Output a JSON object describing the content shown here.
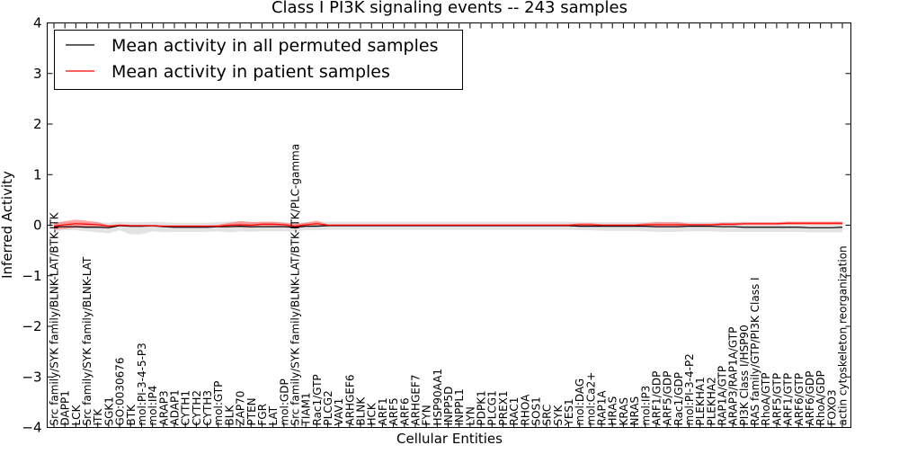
{
  "chart_data": {
    "type": "line",
    "title": "Class I PI3K signaling events -- 243 samples",
    "xlabel": "Cellular Entities",
    "ylabel": "Inferred Activity",
    "ylim": [
      -4,
      4
    ],
    "yticks": [
      4,
      3,
      2,
      1,
      0,
      -1,
      -2,
      -3,
      -4
    ],
    "ytick_labels": [
      "4",
      "3",
      "2",
      "1",
      "0",
      "−1",
      "−2",
      "−3",
      "−4"
    ],
    "legend_position": "upper-left",
    "categories": [
      "Src family/SYK family/BLNK-LAT/BTK-ITK",
      "DAPP1",
      "LCK",
      "Src family/SYK family/BLNK-LAT",
      "ITK",
      "SGK1",
      "GO:0030676",
      "BTK",
      "mol:PI-3-4-5-P3",
      "mol:IP4",
      "ARAP3",
      "ADAP1",
      "CYTH1",
      "CYTH2",
      "CYTH3",
      "mol:GTP",
      "BLK",
      "ZAP70",
      "PTEN",
      "FGR",
      "LAT",
      "mol:GDP",
      "Src family/SYK family/BLNK-LAT/BTK-ITK/PLC-gamma",
      "TIAM1",
      "Rac1/GTP",
      "PLCG2",
      "VAV1",
      "ARHGEF6",
      "BLNK",
      "HCK",
      "ARF1",
      "ARF5",
      "ARF6",
      "ARHGEF7",
      "FYN",
      "HSP90AA1",
      "INPP5D",
      "INPPL1",
      "LYN",
      "PDPK1",
      "PLCG1",
      "PREX1",
      "RAC1",
      "RHOA",
      "SOS1",
      "SRC",
      "SYK",
      "YES1",
      "mol:DAG",
      "mol:Ca2+",
      "RAP1A",
      "HRAS",
      "KRAS",
      "NRAS",
      "mol:IP3",
      "ARF1/GDP",
      "ARF5/GDP",
      "Rac1/GDP",
      "mol:PI-3-4-P2",
      "PLEKHA1",
      "PLEKHA2",
      "RAP1A/GTP",
      "ARAP3/RAP1A/GTP",
      "PI3K Class I/HSP90",
      "RAS family/GTP/PI3K Class I",
      "RhoA/GTP",
      "ARF5/GTP",
      "ARF1/GTP",
      "ARF6/GTP",
      "ARF6/GDP",
      "RhoA/GDP",
      "FOXO3",
      "actin cytoskeleton reorganization"
    ],
    "series": [
      {
        "name": "Mean activity in all permuted samples",
        "color": "#000000",
        "values": [
          -0.03,
          -0.03,
          -0.03,
          -0.04,
          -0.04,
          -0.05,
          -0.01,
          -0.02,
          -0.02,
          -0.01,
          -0.03,
          -0.04,
          -0.04,
          -0.04,
          -0.04,
          -0.03,
          -0.03,
          -0.02,
          -0.03,
          -0.03,
          -0.03,
          -0.03,
          -0.04,
          -0.02,
          -0.02,
          -0.01,
          -0.01,
          -0.01,
          -0.01,
          -0.01,
          -0.01,
          -0.01,
          -0.01,
          -0.01,
          -0.01,
          -0.01,
          -0.01,
          -0.01,
          -0.01,
          -0.01,
          -0.01,
          -0.01,
          -0.01,
          -0.01,
          -0.01,
          -0.01,
          -0.01,
          -0.01,
          -0.02,
          -0.02,
          -0.02,
          -0.02,
          -0.02,
          -0.02,
          -0.02,
          -0.03,
          -0.03,
          -0.03,
          -0.02,
          -0.02,
          -0.02,
          -0.03,
          -0.03,
          -0.04,
          -0.04,
          -0.04,
          -0.04,
          -0.04,
          -0.04,
          -0.05,
          -0.05,
          -0.05,
          -0.04
        ]
      },
      {
        "name": "Mean activity in patient samples",
        "color": "#ff0000",
        "values": [
          -0.02,
          0.01,
          0.03,
          0.02,
          0.01,
          -0.02,
          0.0,
          -0.01,
          -0.01,
          -0.01,
          -0.02,
          -0.02,
          -0.02,
          -0.02,
          -0.02,
          -0.02,
          0.0,
          0.01,
          0.0,
          0.02,
          0.02,
          0.01,
          -0.02,
          0.01,
          0.03,
          0.0,
          0.0,
          0.0,
          0.0,
          0.0,
          0.0,
          0.0,
          0.0,
          0.0,
          0.0,
          0.0,
          0.0,
          0.0,
          0.0,
          0.0,
          0.0,
          0.0,
          0.0,
          0.0,
          0.0,
          0.0,
          0.0,
          0.0,
          0.01,
          0.01,
          0.0,
          0.0,
          0.0,
          0.0,
          0.01,
          0.01,
          0.01,
          0.01,
          0.01,
          0.01,
          0.01,
          0.02,
          0.02,
          0.03,
          0.03,
          0.03,
          0.03,
          0.04,
          0.04,
          0.04,
          0.04,
          0.04,
          0.04
        ]
      }
    ],
    "permuted_band": {
      "color": "#cccccc",
      "lower": [
        -0.12,
        -0.1,
        -0.1,
        -0.12,
        -0.14,
        -0.16,
        -0.1,
        -0.18,
        -0.18,
        -0.12,
        -0.14,
        -0.13,
        -0.13,
        -0.13,
        -0.13,
        -0.12,
        -0.14,
        -0.12,
        -0.13,
        -0.12,
        -0.12,
        -0.12,
        -0.12,
        -0.1,
        -0.1,
        -0.09,
        -0.09,
        -0.09,
        -0.09,
        -0.09,
        -0.09,
        -0.09,
        -0.09,
        -0.09,
        -0.09,
        -0.09,
        -0.09,
        -0.09,
        -0.09,
        -0.09,
        -0.09,
        -0.09,
        -0.09,
        -0.09,
        -0.09,
        -0.09,
        -0.09,
        -0.09,
        -0.1,
        -0.1,
        -0.11,
        -0.11,
        -0.11,
        -0.11,
        -0.12,
        -0.13,
        -0.13,
        -0.13,
        -0.12,
        -0.12,
        -0.12,
        -0.13,
        -0.13,
        -0.13,
        -0.13,
        -0.13,
        -0.13,
        -0.13,
        -0.13,
        -0.14,
        -0.14,
        -0.14,
        -0.14
      ],
      "upper": [
        0.06,
        0.06,
        0.06,
        0.06,
        0.06,
        0.05,
        0.07,
        0.06,
        0.06,
        0.07,
        0.06,
        0.05,
        0.05,
        0.05,
        0.05,
        0.06,
        0.07,
        0.08,
        0.07,
        0.06,
        0.06,
        0.06,
        0.05,
        0.06,
        0.06,
        0.07,
        0.07,
        0.07,
        0.07,
        0.07,
        0.07,
        0.07,
        0.07,
        0.07,
        0.07,
        0.07,
        0.07,
        0.07,
        0.07,
        0.07,
        0.07,
        0.07,
        0.07,
        0.07,
        0.07,
        0.07,
        0.07,
        0.07,
        0.06,
        0.06,
        0.06,
        0.06,
        0.06,
        0.06,
        0.06,
        0.06,
        0.06,
        0.06,
        0.06,
        0.06,
        0.06,
        0.06,
        0.06,
        0.05,
        0.05,
        0.05,
        0.05,
        0.05,
        0.05,
        0.05,
        0.05,
        0.05,
        0.05
      ]
    },
    "patient_band": {
      "color": "#ff6666",
      "lower": [
        -0.09,
        -0.07,
        -0.05,
        -0.05,
        -0.04,
        -0.04,
        -0.02,
        -0.03,
        -0.03,
        -0.03,
        -0.04,
        -0.04,
        -0.04,
        -0.04,
        -0.04,
        -0.04,
        -0.04,
        -0.04,
        -0.05,
        -0.03,
        -0.03,
        -0.03,
        -0.07,
        -0.03,
        -0.02,
        -0.02,
        -0.02,
        -0.02,
        -0.02,
        -0.02,
        -0.02,
        -0.02,
        -0.02,
        -0.02,
        -0.02,
        -0.02,
        -0.02,
        -0.02,
        -0.02,
        -0.02,
        -0.02,
        -0.02,
        -0.02,
        -0.02,
        -0.02,
        -0.02,
        -0.02,
        -0.02,
        -0.02,
        -0.02,
        -0.02,
        -0.02,
        -0.02,
        -0.02,
        -0.02,
        -0.03,
        -0.03,
        -0.03,
        -0.01,
        -0.01,
        -0.01,
        -0.01,
        -0.01,
        0.0,
        0.0,
        0.0,
        0.0,
        0.01,
        0.01,
        0.01,
        0.01,
        0.01,
        0.01
      ],
      "upper": [
        0.04,
        0.08,
        0.11,
        0.09,
        0.06,
        0.0,
        0.02,
        0.01,
        0.01,
        0.01,
        0.0,
        0.0,
        0.0,
        0.0,
        0.0,
        0.01,
        0.05,
        0.08,
        0.06,
        0.07,
        0.07,
        0.05,
        0.03,
        0.05,
        0.09,
        0.02,
        0.02,
        0.02,
        0.02,
        0.02,
        0.02,
        0.02,
        0.02,
        0.02,
        0.02,
        0.02,
        0.02,
        0.02,
        0.02,
        0.02,
        0.02,
        0.02,
        0.02,
        0.02,
        0.02,
        0.02,
        0.02,
        0.02,
        0.04,
        0.04,
        0.02,
        0.02,
        0.02,
        0.02,
        0.04,
        0.06,
        0.06,
        0.06,
        0.03,
        0.03,
        0.03,
        0.05,
        0.05,
        0.06,
        0.06,
        0.06,
        0.06,
        0.07,
        0.07,
        0.07,
        0.07,
        0.07,
        0.07
      ]
    }
  }
}
